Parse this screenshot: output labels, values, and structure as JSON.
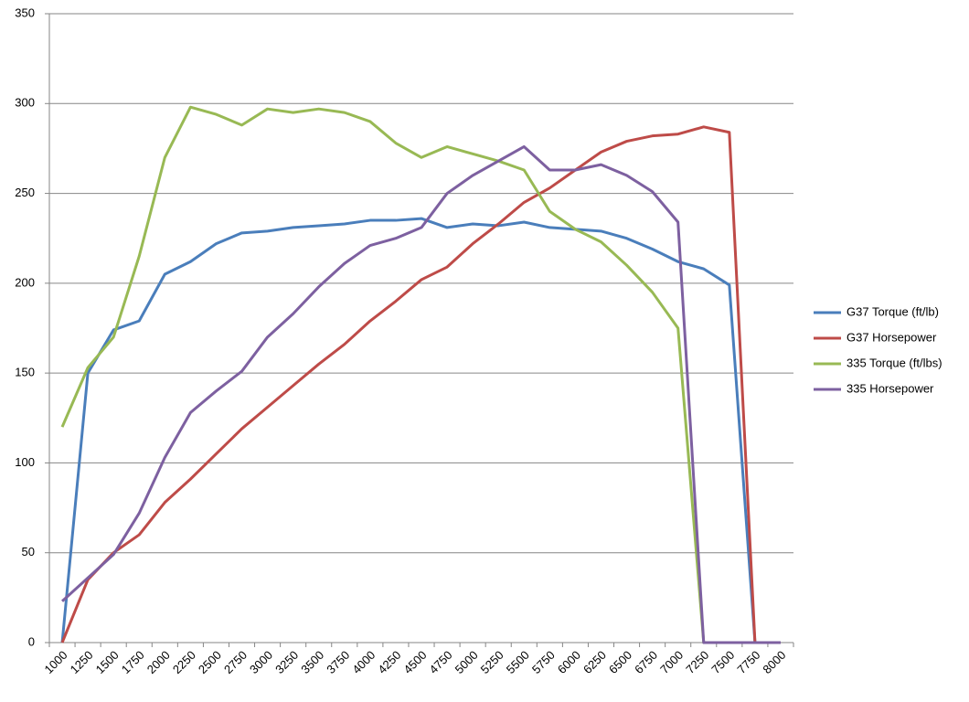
{
  "chart_data": {
    "type": "line",
    "categories": [
      1000,
      1250,
      1500,
      1750,
      2000,
      2250,
      2500,
      2750,
      3000,
      3250,
      3500,
      3750,
      4000,
      4250,
      4500,
      4750,
      5000,
      5250,
      5500,
      5750,
      6000,
      6250,
      6500,
      6750,
      7000,
      7250,
      7500,
      7750,
      8000
    ],
    "series": [
      {
        "name": "G37 Torque (ft/lb)",
        "color": "#4a7ebb",
        "values": [
          0,
          150,
          174,
          179,
          205,
          212,
          222,
          228,
          229,
          231,
          232,
          233,
          235,
          235,
          236,
          231,
          233,
          232,
          234,
          231,
          230,
          229,
          225,
          219,
          212,
          208,
          199,
          0,
          0
        ]
      },
      {
        "name": "G37 Horsepower",
        "color": "#be4b48",
        "values": [
          0,
          35,
          50,
          60,
          78,
          91,
          105,
          119,
          131,
          143,
          155,
          166,
          179,
          190,
          202,
          209,
          222,
          233,
          245,
          253,
          263,
          273,
          279,
          282,
          283,
          287,
          284,
          0,
          0
        ]
      },
      {
        "name": "335 Torque (ft/lbs)",
        "color": "#98b954",
        "values": [
          120,
          153,
          170,
          215,
          270,
          298,
          294,
          288,
          297,
          295,
          297,
          295,
          290,
          278,
          270,
          276,
          272,
          268,
          263,
          240,
          230,
          223,
          210,
          195,
          175,
          0,
          0,
          0,
          0
        ]
      },
      {
        "name": "335 Horsepower",
        "color": "#7d60a0",
        "values": [
          23,
          36,
          49,
          72,
          103,
          128,
          140,
          151,
          170,
          183,
          198,
          211,
          221,
          225,
          231,
          250,
          260,
          268,
          276,
          263,
          263,
          266,
          260,
          251,
          234,
          0,
          0,
          0,
          0
        ]
      }
    ],
    "ylim": [
      0,
      350
    ],
    "yticks": [
      0,
      50,
      100,
      150,
      200,
      250,
      300,
      350
    ],
    "grid": true,
    "legend": "right"
  }
}
